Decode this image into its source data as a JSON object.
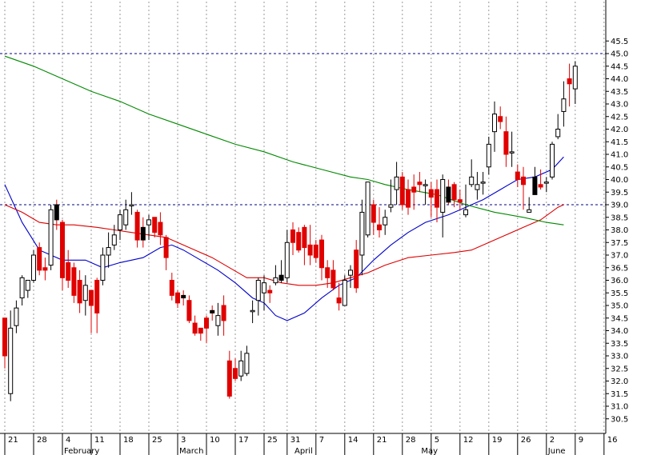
{
  "chart_data": {
    "type": "candlestick",
    "ylim": [
      30.0,
      46.0
    ],
    "y_ticks": [
      30.5,
      31.0,
      31.5,
      32.0,
      32.5,
      33.0,
      33.5,
      34.0,
      34.5,
      35.0,
      35.5,
      36.0,
      36.5,
      37.0,
      37.5,
      38.0,
      38.5,
      39.0,
      39.5,
      40.0,
      40.5,
      41.0,
      41.5,
      42.0,
      42.5,
      43.0,
      43.5,
      44.0,
      44.5,
      45.0,
      45.5
    ],
    "y_tick_labels": [
      "30.5",
      "31.0",
      "31.5",
      "32.0",
      "32.5",
      "33.0",
      "33.5",
      "34.0",
      "34.5",
      "35.0",
      "35.5",
      "36.0",
      "36.5",
      "37.0",
      "37.5",
      "38.0",
      "38.5",
      "39.0",
      "39.5",
      "40.0",
      "40.5",
      "41.0",
      "41.5",
      "42.0",
      "42.5",
      "43.0",
      "43.5",
      "44.0",
      "44.5",
      "45.0",
      "45.5"
    ],
    "x_ticks": [
      {
        "label": "21",
        "day": 0
      },
      {
        "label": "28",
        "day": 5
      },
      {
        "label": "4",
        "day": 10
      },
      {
        "label": "11",
        "day": 15
      },
      {
        "label": "18",
        "day": 20
      },
      {
        "label": "25",
        "day": 25
      },
      {
        "label": "3",
        "day": 30
      },
      {
        "label": "10",
        "day": 35
      },
      {
        "label": "17",
        "day": 40
      },
      {
        "label": "25",
        "day": 45
      },
      {
        "label": "31",
        "day": 49
      },
      {
        "label": "7",
        "day": 54
      },
      {
        "label": "14",
        "day": 59
      },
      {
        "label": "21",
        "day": 64
      },
      {
        "label": "28",
        "day": 69
      },
      {
        "label": "5",
        "day": 74
      },
      {
        "label": "12",
        "day": 79
      },
      {
        "label": "19",
        "day": 84
      },
      {
        "label": "26",
        "day": 89
      },
      {
        "label": "2",
        "day": 94
      },
      {
        "label": "9",
        "day": 99
      },
      {
        "label": "16",
        "day": 104
      }
    ],
    "month_labels": [
      {
        "label": "February",
        "day": 10
      },
      {
        "label": "March",
        "day": 30
      },
      {
        "label": "April",
        "day": 50
      },
      {
        "label": "May",
        "day": 72
      },
      {
        "label": "June",
        "day": 94
      }
    ],
    "reference_lines": [
      45.0,
      39.0
    ],
    "candles": [
      [
        34.5,
        34.5,
        32.5,
        33.0
      ],
      [
        31.5,
        34.8,
        31.2,
        34.1
      ],
      [
        34.2,
        35.2,
        33.9,
        34.9
      ],
      [
        35.3,
        36.2,
        35.0,
        36.1
      ],
      [
        35.6,
        36.0,
        35.3,
        36.0
      ],
      [
        36.0,
        37.2,
        35.9,
        37.0
      ],
      [
        37.3,
        37.5,
        36.2,
        36.4
      ],
      [
        36.5,
        36.9,
        36.0,
        36.4
      ],
      [
        36.6,
        39.0,
        36.4,
        38.8
      ],
      [
        39.0,
        39.2,
        38.0,
        38.4
      ],
      [
        38.3,
        38.4,
        35.6,
        36.1
      ],
      [
        36.7,
        37.2,
        35.7,
        36.0
      ],
      [
        36.5,
        36.7,
        35.1,
        35.4
      ],
      [
        36.0,
        36.4,
        34.7,
        35.1
      ],
      [
        35.2,
        36.2,
        34.6,
        35.8
      ],
      [
        35.6,
        35.6,
        33.9,
        35.0
      ],
      [
        36.0,
        36.1,
        33.9,
        34.7
      ],
      [
        36.0,
        37.3,
        35.8,
        37.0
      ],
      [
        37.0,
        37.9,
        36.5,
        37.3
      ],
      [
        37.4,
        38.2,
        37.2,
        37.8
      ],
      [
        38.0,
        38.8,
        37.6,
        38.6
      ],
      [
        38.2,
        39.2,
        38.0,
        38.8
      ],
      [
        39.0,
        39.5,
        38.6,
        39.0
      ],
      [
        38.7,
        38.8,
        37.3,
        37.6
      ],
      [
        38.1,
        38.5,
        37.3,
        37.6
      ],
      [
        38.2,
        38.6,
        37.6,
        38.4
      ],
      [
        38.5,
        38.5,
        37.7,
        37.9
      ],
      [
        38.3,
        38.7,
        37.4,
        37.8
      ],
      [
        37.7,
        37.8,
        36.4,
        36.9
      ],
      [
        36.0,
        36.3,
        35.2,
        35.4
      ],
      [
        35.5,
        35.6,
        34.9,
        35.1
      ],
      [
        35.4,
        35.6,
        35.0,
        35.3
      ],
      [
        35.2,
        35.4,
        34.3,
        34.4
      ],
      [
        34.3,
        34.6,
        33.8,
        33.9
      ],
      [
        34.1,
        34.1,
        33.6,
        33.9
      ],
      [
        34.5,
        34.6,
        33.5,
        34.1
      ],
      [
        34.8,
        35.0,
        34.4,
        34.7
      ],
      [
        34.2,
        35.1,
        33.8,
        34.6
      ],
      [
        35.0,
        35.4,
        33.8,
        34.4
      ],
      [
        32.8,
        33.2,
        31.3,
        31.4
      ],
      [
        32.5,
        32.9,
        32.0,
        32.1
      ],
      [
        32.2,
        33.2,
        32.0,
        32.8
      ],
      [
        32.3,
        33.4,
        32.2,
        33.1
      ],
      [
        34.8,
        35.2,
        34.3,
        34.8
      ],
      [
        35.2,
        36.1,
        34.6,
        36.0
      ],
      [
        35.5,
        36.2,
        34.8,
        35.9
      ],
      [
        35.6,
        35.8,
        35.1,
        35.5
      ],
      [
        35.9,
        36.6,
        35.8,
        36.1
      ],
      [
        36.0,
        36.8,
        35.9,
        36.2
      ],
      [
        36.1,
        38.0,
        35.9,
        37.5
      ],
      [
        38.0,
        38.3,
        37.0,
        37.5
      ],
      [
        37.9,
        38.1,
        37.1,
        37.2
      ],
      [
        38.1,
        38.2,
        36.6,
        37.3
      ],
      [
        37.4,
        38.2,
        36.6,
        37.0
      ],
      [
        37.4,
        37.6,
        36.7,
        36.9
      ],
      [
        37.6,
        37.8,
        36.0,
        36.5
      ],
      [
        36.5,
        36.8,
        35.7,
        36.1
      ],
      [
        36.4,
        36.8,
        35.6,
        35.7
      ],
      [
        35.3,
        35.9,
        34.8,
        35.1
      ],
      [
        35.0,
        36.2,
        35.1,
        36.0
      ],
      [
        36.2,
        36.6,
        35.7,
        36.4
      ],
      [
        37.2,
        37.6,
        35.5,
        35.7
      ],
      [
        37.0,
        39.2,
        36.2,
        38.7
      ],
      [
        37.8,
        39.8,
        37.7,
        39.9
      ],
      [
        39.0,
        39.2,
        37.8,
        38.3
      ],
      [
        38.2,
        38.9,
        37.7,
        38.0
      ],
      [
        38.2,
        38.8,
        37.8,
        38.5
      ],
      [
        38.9,
        40.0,
        38.7,
        39.0
      ],
      [
        39.6,
        40.7,
        39.0,
        40.1
      ],
      [
        40.1,
        40.3,
        38.8,
        39.0
      ],
      [
        39.6,
        40.0,
        38.6,
        38.9
      ],
      [
        39.7,
        40.2,
        38.8,
        39.5
      ],
      [
        39.9,
        40.3,
        39.5,
        39.8
      ],
      [
        39.8,
        40.0,
        39.0,
        39.8
      ],
      [
        39.6,
        39.9,
        38.5,
        39.3
      ],
      [
        39.6,
        40.0,
        38.3,
        38.9
      ],
      [
        38.7,
        40.2,
        37.7,
        40.0
      ],
      [
        39.7,
        40.0,
        39.0,
        39.1
      ],
      [
        39.8,
        39.9,
        38.9,
        39.2
      ],
      [
        39.2,
        39.6,
        38.8,
        39.1
      ],
      [
        38.6,
        39.8,
        38.5,
        38.8
      ],
      [
        39.8,
        40.8,
        39.7,
        40.1
      ],
      [
        39.6,
        40.3,
        39.2,
        39.8
      ],
      [
        39.9,
        40.3,
        39.4,
        39.9
      ],
      [
        40.5,
        41.7,
        40.2,
        41.4
      ],
      [
        41.9,
        43.1,
        41.1,
        42.6
      ],
      [
        42.5,
        42.9,
        42.0,
        42.3
      ],
      [
        41.9,
        42.5,
        40.5,
        41.0
      ],
      [
        41.1,
        41.9,
        40.5,
        41.1
      ],
      [
        40.3,
        40.6,
        39.7,
        40.0
      ],
      [
        40.1,
        40.5,
        38.8,
        39.8
      ],
      [
        38.7,
        39.3,
        38.8,
        38.8
      ],
      [
        39.4,
        40.5,
        39.4,
        40.1
      ],
      [
        39.8,
        40.4,
        39.6,
        39.7
      ],
      [
        39.9,
        40.1,
        39.5,
        39.9
      ],
      [
        40.1,
        41.5,
        40.0,
        41.4
      ],
      [
        41.7,
        42.6,
        41.6,
        42.0
      ],
      [
        42.7,
        43.9,
        42.1,
        43.2
      ],
      [
        44.0,
        44.6,
        42.9,
        43.8
      ],
      [
        43.6,
        44.7,
        43.0,
        44.5
      ]
    ],
    "series": [
      {
        "color": "#0000cc",
        "points": [
          [
            0,
            39.8
          ],
          [
            3,
            38.3
          ],
          [
            6,
            37.2
          ],
          [
            10,
            36.8
          ],
          [
            14,
            36.8
          ],
          [
            17,
            36.5
          ],
          [
            20,
            36.7
          ],
          [
            24,
            36.9
          ],
          [
            27,
            37.3
          ],
          [
            29,
            37.4
          ],
          [
            31,
            37.2
          ],
          [
            34,
            36.8
          ],
          [
            37,
            36.4
          ],
          [
            40,
            35.9
          ],
          [
            43,
            35.3
          ],
          [
            45,
            35.1
          ],
          [
            47,
            34.6
          ],
          [
            49,
            34.4
          ],
          [
            52,
            34.7
          ],
          [
            55,
            35.3
          ],
          [
            58,
            35.8
          ],
          [
            61,
            36.1
          ],
          [
            64,
            36.8
          ],
          [
            67,
            37.4
          ],
          [
            70,
            37.9
          ],
          [
            73,
            38.3
          ],
          [
            77,
            38.6
          ],
          [
            80,
            38.9
          ],
          [
            83,
            39.2
          ],
          [
            86,
            39.6
          ],
          [
            89,
            40.0
          ],
          [
            92,
            40.1
          ],
          [
            95,
            40.4
          ],
          [
            97,
            40.9
          ]
        ]
      },
      {
        "color": "#dd0000",
        "points": [
          [
            0,
            39.0
          ],
          [
            3,
            38.7
          ],
          [
            6,
            38.3
          ],
          [
            9,
            38.2
          ],
          [
            12,
            38.2
          ],
          [
            16,
            38.1
          ],
          [
            19,
            38.0
          ],
          [
            22,
            37.9
          ],
          [
            25,
            37.8
          ],
          [
            28,
            37.7
          ],
          [
            30,
            37.5
          ],
          [
            33,
            37.2
          ],
          [
            36,
            36.9
          ],
          [
            39,
            36.5
          ],
          [
            42,
            36.1
          ],
          [
            45,
            36.1
          ],
          [
            48,
            35.9
          ],
          [
            51,
            35.8
          ],
          [
            54,
            35.8
          ],
          [
            57,
            35.9
          ],
          [
            60,
            36.1
          ],
          [
            63,
            36.3
          ],
          [
            66,
            36.6
          ],
          [
            70,
            36.9
          ],
          [
            74,
            37.0
          ],
          [
            78,
            37.1
          ],
          [
            81,
            37.2
          ],
          [
            84,
            37.5
          ],
          [
            87,
            37.8
          ],
          [
            90,
            38.1
          ],
          [
            93,
            38.4
          ],
          [
            96,
            38.9
          ],
          [
            97,
            39.0
          ]
        ]
      },
      {
        "color": "#008800",
        "points": [
          [
            0,
            44.9
          ],
          [
            5,
            44.5
          ],
          [
            10,
            44.0
          ],
          [
            15,
            43.5
          ],
          [
            20,
            43.1
          ],
          [
            25,
            42.6
          ],
          [
            30,
            42.2
          ],
          [
            35,
            41.8
          ],
          [
            40,
            41.4
          ],
          [
            45,
            41.1
          ],
          [
            50,
            40.7
          ],
          [
            55,
            40.4
          ],
          [
            60,
            40.1
          ],
          [
            63,
            40.0
          ],
          [
            66,
            39.8
          ],
          [
            70,
            39.6
          ],
          [
            75,
            39.4
          ],
          [
            80,
            39.0
          ],
          [
            85,
            38.7
          ],
          [
            90,
            38.5
          ],
          [
            94,
            38.3
          ],
          [
            97,
            38.2
          ]
        ]
      }
    ]
  }
}
